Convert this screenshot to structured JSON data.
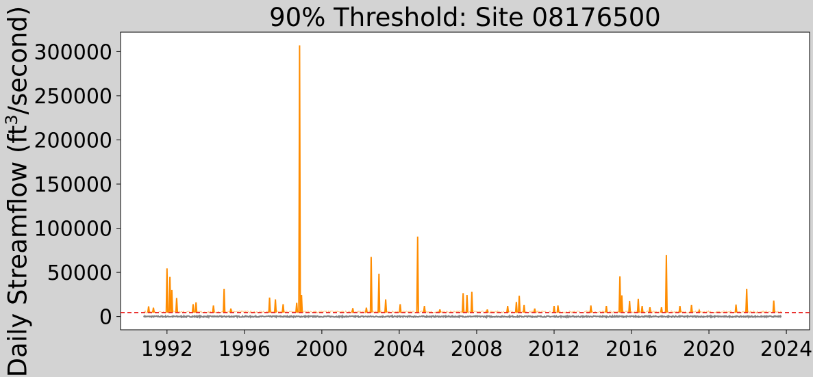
{
  "chart_data": {
    "type": "line",
    "title": "90% Threshold: Site 08176500",
    "ylabel": {
      "pre": "Daily Streamflow (ft",
      "sup": "3",
      "post": "/second)"
    },
    "xlabel": "",
    "xlim": [
      1989.6,
      2025.2
    ],
    "ylim": [
      -15000,
      322000
    ],
    "x_ticks": [
      1992,
      1996,
      2000,
      2004,
      2008,
      2012,
      2016,
      2020,
      2024
    ],
    "x_tick_labels": [
      "1992",
      "1996",
      "2000",
      "2004",
      "2008",
      "2012",
      "2016",
      "2020",
      "2024"
    ],
    "y_ticks": [
      0,
      50000,
      100000,
      150000,
      200000,
      250000,
      300000
    ],
    "y_tick_labels": [
      "0",
      "50000",
      "100000",
      "150000",
      "200000",
      "250000",
      "300000"
    ],
    "threshold": {
      "value": 4500,
      "color": "#e8211f",
      "style": "dashed"
    },
    "colors": {
      "below_threshold": "#808080",
      "above_threshold": "#ff8c00",
      "plot_bg": "#ffffff",
      "figure_bg": "#d3d3d3"
    },
    "series": [
      {
        "color": "#ff8c00",
        "peaks": [
          [
            1991.05,
            11500
          ],
          [
            1991.3,
            10000
          ],
          [
            1992.0,
            54500
          ],
          [
            1992.15,
            45000
          ],
          [
            1992.25,
            30000
          ],
          [
            1992.5,
            21000
          ],
          [
            1993.35,
            14000
          ],
          [
            1993.5,
            16000
          ],
          [
            1994.4,
            12500
          ],
          [
            1994.95,
            31500
          ],
          [
            1995.3,
            9000
          ],
          [
            1997.3,
            21500
          ],
          [
            1997.6,
            19500
          ],
          [
            1998.0,
            14000
          ],
          [
            1998.7,
            15500
          ],
          [
            1998.85,
            307000
          ],
          [
            1998.95,
            24500
          ],
          [
            2001.6,
            9500
          ],
          [
            2002.3,
            10000
          ],
          [
            2002.55,
            67500
          ],
          [
            2002.95,
            48500
          ],
          [
            2003.3,
            19500
          ],
          [
            2004.05,
            14000
          ],
          [
            2004.95,
            90500
          ],
          [
            2005.3,
            12000
          ],
          [
            2006.1,
            8000
          ],
          [
            2007.3,
            26500
          ],
          [
            2007.5,
            24500
          ],
          [
            2007.75,
            28000
          ],
          [
            2008.55,
            8000
          ],
          [
            2009.6,
            12000
          ],
          [
            2010.05,
            16500
          ],
          [
            2010.2,
            23500
          ],
          [
            2010.45,
            13000
          ],
          [
            2011.0,
            9000
          ],
          [
            2012.0,
            12000
          ],
          [
            2012.2,
            12500
          ],
          [
            2013.9,
            12500
          ],
          [
            2014.7,
            12000
          ],
          [
            2015.4,
            45500
          ],
          [
            2015.5,
            24000
          ],
          [
            2015.9,
            17500
          ],
          [
            2016.35,
            20000
          ],
          [
            2016.55,
            12000
          ],
          [
            2016.95,
            10500
          ],
          [
            2017.55,
            10500
          ],
          [
            2017.8,
            69500
          ],
          [
            2018.5,
            12000
          ],
          [
            2019.1,
            13000
          ],
          [
            2019.5,
            7000
          ],
          [
            2021.4,
            13500
          ],
          [
            2021.95,
            31500
          ],
          [
            2023.35,
            18000
          ]
        ]
      },
      {
        "color": "#808080",
        "baseline": -700,
        "start": 1990.8,
        "end": 2023.75
      }
    ]
  }
}
